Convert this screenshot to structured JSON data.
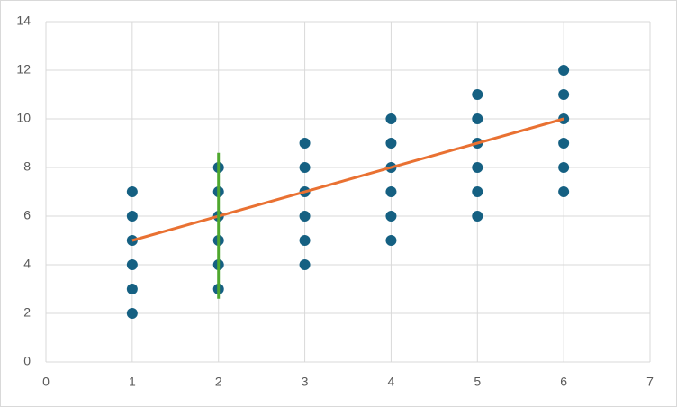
{
  "chart_data": {
    "type": "scatter",
    "xlim": [
      0,
      7
    ],
    "xticks": [
      0,
      1,
      2,
      3,
      4,
      5,
      6,
      7
    ],
    "ylim": [
      0,
      14
    ],
    "yticks": [
      0,
      2,
      4,
      6,
      8,
      10,
      12,
      14
    ],
    "grid": true,
    "series": [
      {
        "mode": "markers",
        "color": "#156082",
        "x": [
          1,
          1,
          1,
          1,
          1,
          1,
          2,
          2,
          2,
          2,
          2,
          2,
          3,
          3,
          3,
          3,
          3,
          3,
          4,
          4,
          4,
          4,
          4,
          4,
          5,
          5,
          5,
          5,
          5,
          5,
          6,
          6,
          6,
          6,
          6,
          6
        ],
        "values": [
          2,
          3,
          4,
          5,
          6,
          7,
          3,
          4,
          5,
          6,
          7,
          8,
          4,
          5,
          6,
          7,
          8,
          9,
          5,
          6,
          7,
          8,
          9,
          10,
          6,
          7,
          8,
          9,
          10,
          11,
          7,
          8,
          9,
          10,
          11,
          12
        ]
      },
      {
        "mode": "line",
        "color": "#e97132",
        "x": [
          1,
          6
        ],
        "values": [
          5,
          10
        ]
      },
      {
        "mode": "line",
        "color": "#4ea72e",
        "x": [
          2,
          2
        ],
        "values": [
          2.6,
          8.6
        ]
      }
    ]
  }
}
